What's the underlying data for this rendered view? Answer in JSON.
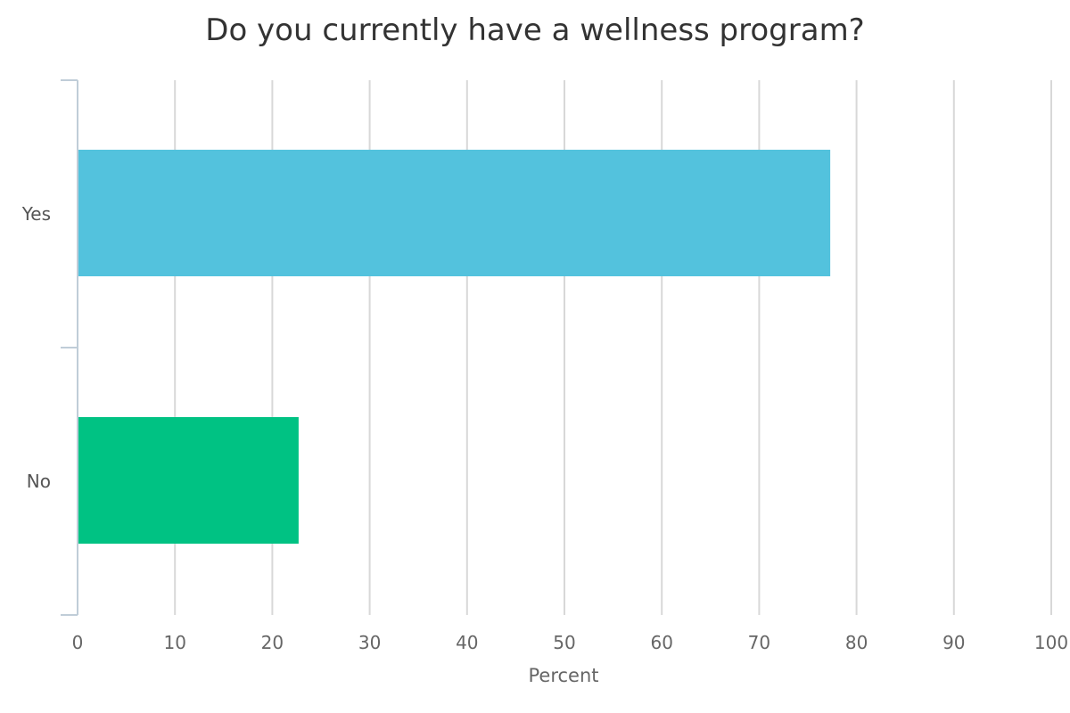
{
  "chart_data": {
    "type": "bar",
    "orientation": "horizontal",
    "title": "Do you currently have a wellness program?",
    "categories": [
      "Yes",
      "No"
    ],
    "values": [
      77.3,
      22.7
    ],
    "bar_colors": [
      "#53C2DD",
      "#00C283"
    ],
    "xlabel": "Percent",
    "ylabel": "",
    "xlim": [
      0,
      100
    ],
    "x_ticks": [
      "0",
      "10",
      "20",
      "30",
      "40",
      "50",
      "60",
      "70",
      "80",
      "90",
      "100"
    ],
    "grid": true,
    "legend": "none"
  },
  "colors": {
    "grid": "#D8D8D8",
    "axis": "#C0CDD8",
    "title": "#333333",
    "tick_text": "#666666"
  }
}
